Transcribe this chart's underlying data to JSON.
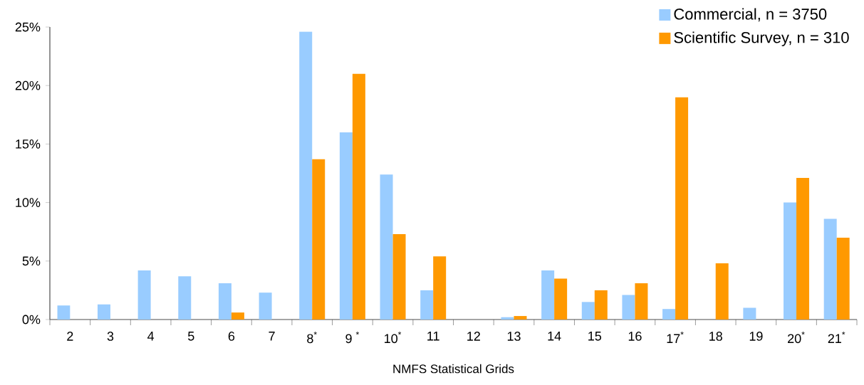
{
  "chart_data": {
    "type": "bar",
    "xlabel": "NMFS Statistical Grids",
    "categories": [
      "2",
      "3",
      "4",
      "5",
      "6",
      "7",
      "8$^{*}$",
      "9 $^{*}$",
      "10$^{*}$",
      "11",
      "12",
      "13",
      "14",
      "15",
      "16",
      "17$^{*}$",
      "18",
      "19",
      "20$^{*}$",
      "21$^{*}$"
    ],
    "series": [
      {
        "name": "Commercial, n = 3750",
        "color": "#99ccff",
        "values": [
          1.2,
          1.3,
          4.2,
          3.7,
          3.1,
          2.3,
          24.6,
          16.0,
          12.4,
          2.5,
          0,
          0.2,
          4.2,
          1.5,
          2.1,
          0.9,
          0,
          1.0,
          10.0,
          8.6
        ]
      },
      {
        "name": "Scientific Survey, n = 310",
        "color": "#ff9900",
        "values": [
          0,
          0,
          0,
          0,
          0.6,
          0,
          13.7,
          21.0,
          7.3,
          5.4,
          0,
          0.3,
          3.5,
          2.5,
          3.1,
          19.0,
          4.8,
          0,
          12.1,
          7.0
        ]
      }
    ],
    "ylim": [
      0,
      25
    ],
    "yticks": [
      {
        "value": 0,
        "label": "0%"
      },
      {
        "value": 5,
        "label": "5%"
      },
      {
        "value": 10,
        "label": "10%"
      },
      {
        "value": 15,
        "label": "15%"
      },
      {
        "value": 20,
        "label": "20%"
      },
      {
        "value": 25,
        "label": "25%"
      }
    ],
    "legend": "top right",
    "grid": false
  }
}
